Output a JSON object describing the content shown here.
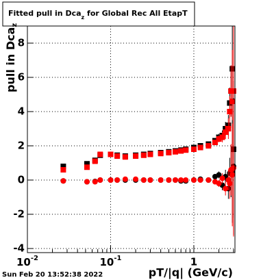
{
  "chart_data": {
    "type": "scatter",
    "title": {
      "text": "Fitted pull in Dca",
      "subscript": "z",
      "rest": " for Global Rec All EtapT"
    },
    "y_label": {
      "text": "pull in Dca",
      "subscript": "z"
    },
    "x_label": "pT/|q| (GeV/c)",
    "footer": "Sun Feb 20 13:52:38 2022",
    "xlog": true,
    "grid": true,
    "xlim": [
      0.01,
      3.12
    ],
    "ylim": [
      -4.24,
      9
    ],
    "xticks": [
      {
        "value": 0.01,
        "label": "10",
        "superscript": "-2"
      },
      {
        "value": 0.1,
        "label": "10",
        "superscript": "-1"
      },
      1
    ],
    "xminorticks": [
      0.02,
      0.03,
      0.04,
      0.05,
      0.06,
      0.07,
      0.08,
      0.09,
      0.2,
      0.3,
      0.4,
      0.5,
      0.6,
      0.7,
      0.8,
      0.9,
      2,
      3
    ],
    "yticks": [
      -4,
      -2,
      0,
      2,
      4,
      6,
      8
    ],
    "x": [
      0.027,
      0.052,
      0.065,
      0.075,
      0.1,
      0.12,
      0.15,
      0.2,
      0.25,
      0.3,
      0.4,
      0.5,
      0.6,
      0.7,
      0.8,
      1.0,
      1.2,
      1.5,
      1.8,
      2.0,
      2.2,
      2.4,
      2.6,
      2.7,
      2.8,
      2.9,
      3.0
    ],
    "series": [
      {
        "color": "#000000",
        "marker": "square",
        "values": [
          0.8,
          0.95,
          1.15,
          1.45,
          1.5,
          1.45,
          1.4,
          1.45,
          1.5,
          1.55,
          1.6,
          1.65,
          1.7,
          1.75,
          1.8,
          1.9,
          2.0,
          2.1,
          2.3,
          2.5,
          2.6,
          3.0,
          3.2,
          4.5,
          5.2,
          6.5,
          1.8
        ],
        "errors": [
          0.05,
          0.05,
          0.05,
          0.05,
          0.05,
          0.05,
          0.05,
          0.05,
          0.05,
          0.05,
          0.05,
          0.05,
          0.05,
          0.05,
          0.05,
          0.05,
          0.05,
          0.1,
          0.15,
          0.2,
          0.3,
          0.4,
          0.6,
          0.9,
          1.5,
          3,
          4
        ]
      },
      {
        "color": "#ff0000",
        "marker": "square",
        "values": [
          0.6,
          0.75,
          1.1,
          1.5,
          1.5,
          1.4,
          1.35,
          1.4,
          1.45,
          1.5,
          1.55,
          1.6,
          1.65,
          1.7,
          1.75,
          1.8,
          1.9,
          2.0,
          2.2,
          2.4,
          2.5,
          2.8,
          3.0,
          4.0,
          5.2,
          4.6,
          5.2
        ],
        "errors": [
          0.05,
          0.05,
          0.05,
          0.05,
          0.05,
          0.05,
          0.05,
          0.05,
          0.05,
          0.05,
          0.05,
          0.05,
          0.05,
          0.05,
          0.05,
          0.05,
          0.05,
          0.1,
          0.15,
          0.2,
          0.3,
          0.4,
          0.6,
          0.9,
          1.5,
          3,
          4
        ]
      },
      {
        "color": "#000000",
        "marker": "circle",
        "values": [
          -0.05,
          -0.1,
          -0.08,
          0,
          0,
          0,
          0,
          0,
          0,
          0,
          0,
          0,
          0,
          -0.05,
          -0.05,
          0,
          0.05,
          0,
          0.2,
          0.3,
          -0.3,
          0.2,
          -0.5,
          0.4,
          0.5,
          0.5,
          0.8
        ],
        "errors": [
          0.05,
          0.05,
          0.05,
          0.05,
          0.05,
          0.05,
          0.05,
          0.05,
          0.05,
          0.05,
          0.05,
          0.05,
          0.05,
          0.05,
          0.05,
          0.05,
          0.05,
          0.1,
          0.15,
          0.2,
          0.3,
          0.4,
          0.6,
          0.9,
          1.5,
          3,
          4
        ]
      },
      {
        "color": "#ff0000",
        "marker": "circle",
        "values": [
          -0.05,
          -0.1,
          -0.1,
          0,
          0,
          0,
          0.05,
          0.05,
          0,
          0,
          0,
          0,
          0,
          0,
          0,
          0,
          0,
          0,
          -0.1,
          -0.2,
          0.1,
          -0.5,
          0,
          -0.2,
          0.6,
          0.3,
          0.7
        ],
        "errors": [
          0.05,
          0.05,
          0.05,
          0.05,
          0.05,
          0.05,
          0.05,
          0.05,
          0.05,
          0.05,
          0.05,
          0.05,
          0.05,
          0.05,
          0.05,
          0.05,
          0.05,
          0.1,
          0.15,
          0.2,
          0.3,
          0.4,
          0.6,
          0.9,
          1.5,
          3,
          4
        ]
      }
    ]
  }
}
